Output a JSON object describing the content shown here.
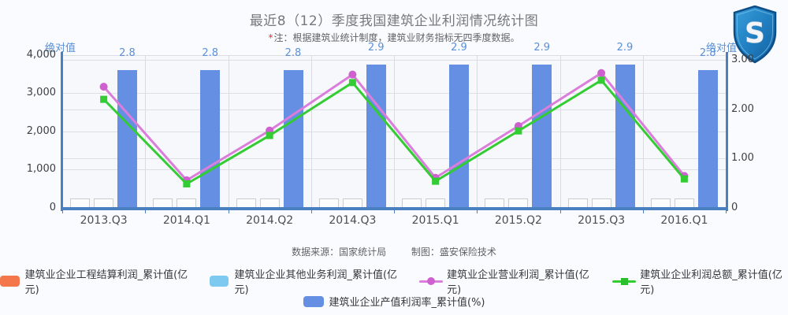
{
  "title": "最近8（12）季度我国建筑企业利润情况统计图",
  "note_star": "*",
  "note": "注：根据建筑业统计制度，建筑业财务指标无四季度数据。",
  "left_axis": {
    "label": "绝对值",
    "ticks": [
      "4,000",
      "3,000",
      "2,000",
      "1,000",
      "0"
    ]
  },
  "right_axis": {
    "label": "绝对值",
    "ticks": [
      "3.00",
      "2.00",
      "1.00",
      "0"
    ]
  },
  "source": "数据来源：国家统计局",
  "credit": "制图：盛安保险技术",
  "colors": {
    "bar_blue": "#648fe3",
    "line_pink": "#db7edb",
    "marker_pink": "#cf60cf",
    "line_green": "#33cc33",
    "legend_orange": "#f4764b",
    "legend_lightblue": "#7ec9f0",
    "axis_blue": "#4b80c0",
    "value_label_blue": "#5a8fd8"
  },
  "chart_data": {
    "type": "bar+line combo",
    "title": "最近8（12）季度我国建筑企业利润情况统计图",
    "categories": [
      "2013.Q3",
      "2014.Q1",
      "2014.Q2",
      "2014.Q3",
      "2015.Q1",
      "2015.Q2",
      "2015.Q3",
      "2016.Q1"
    ],
    "series": [
      {
        "name": "建筑业企业工程结算利润_累计值(亿元)",
        "type": "bar",
        "axis": "left",
        "color": "#f4764b",
        "values": [
          null,
          null,
          null,
          null,
          null,
          null,
          null,
          null
        ]
      },
      {
        "name": "建筑业企业其他业务利润_累计值(亿元)",
        "type": "bar",
        "axis": "left",
        "color": "#7ec9f0",
        "values": [
          null,
          null,
          null,
          null,
          null,
          null,
          null,
          null
        ]
      },
      {
        "name": "建筑业企业营业利润_累计值(亿元)",
        "type": "line",
        "marker": "circle",
        "axis": "left",
        "color": "#db7edb",
        "values": [
          3170,
          715,
          2020,
          3490,
          780,
          2140,
          3530,
          830
        ]
      },
      {
        "name": "建筑业企业利润总额_累计值(亿元)",
        "type": "line",
        "marker": "square",
        "axis": "left",
        "color": "#33cc33",
        "values": [
          2840,
          620,
          1890,
          3280,
          690,
          2010,
          3340,
          750
        ]
      },
      {
        "name": "建筑业企业产值利润率_累计值(%)",
        "type": "bar",
        "axis": "right",
        "color": "#648fe3",
        "values": [
          2.8,
          2.8,
          2.8,
          2.9,
          2.9,
          2.9,
          2.9,
          2.8
        ]
      }
    ],
    "left_ylabel": "绝对值",
    "right_ylabel": "绝对值",
    "left_ylim": [
      0,
      4000
    ],
    "right_ylim": [
      0,
      3.1
    ],
    "grid": true,
    "legend_position": "bottom"
  },
  "legend": {
    "rows": [
      [
        {
          "swatch": "bar",
          "color": "#f4764b",
          "label": "建筑业企业工程结算利润_累计值(亿元)"
        },
        {
          "swatch": "bar",
          "color": "#7ec9f0",
          "label": "建筑业企业其他业务利润_累计值(亿元)"
        },
        {
          "swatch": "line-circle",
          "color": "#db7edb",
          "marker_color": "#cf60cf",
          "label": "建筑业企业营业利润_累计值(亿元)"
        },
        {
          "swatch": "line-square",
          "color": "#33cc33",
          "marker_color": "#2bbf2b",
          "label": "建筑业企业利润总额_累计值(亿元)"
        }
      ],
      [
        {
          "swatch": "bar",
          "color": "#648fe3",
          "label": "建筑业企业产值利润率_累计值(%)"
        }
      ]
    ]
  }
}
